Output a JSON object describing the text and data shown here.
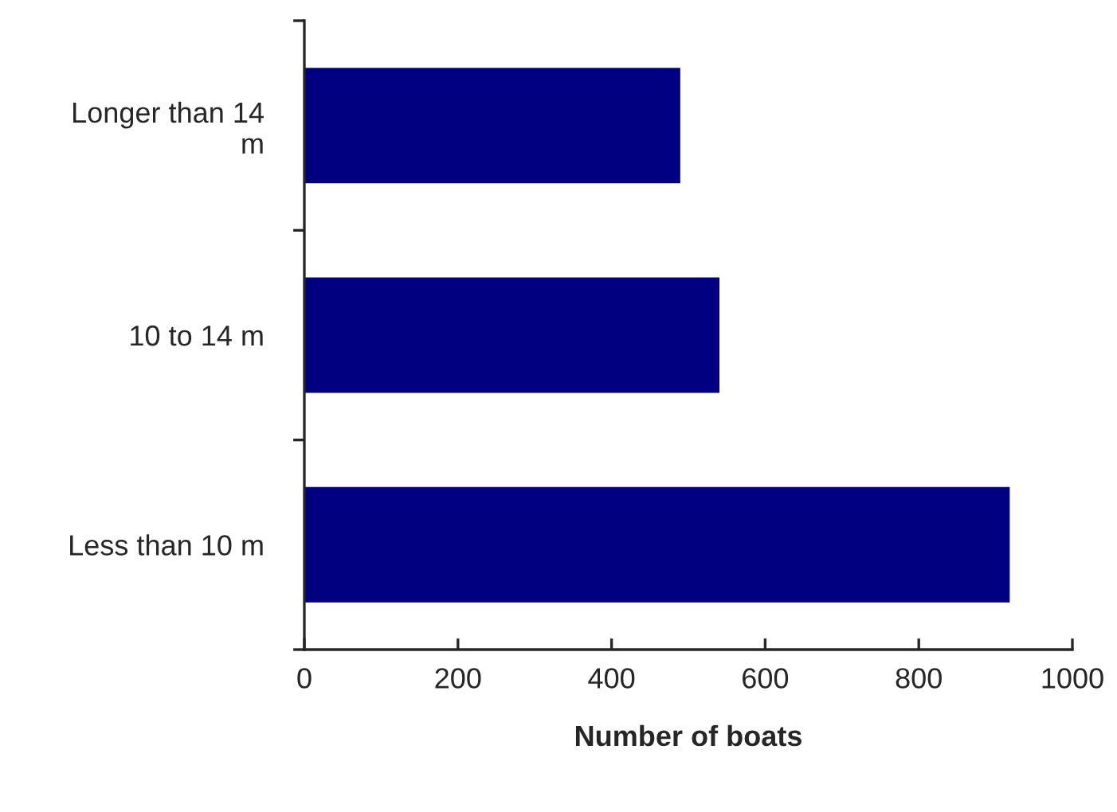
{
  "chart_data": {
    "type": "bar",
    "orientation": "horizontal",
    "xlabel": "Number of boats",
    "categories": [
      "Longer than 14 m",
      "10 to 14 m",
      "Less than 10 m"
    ],
    "values": [
      488,
      539,
      917
    ],
    "color": "#000080",
    "xlim": [
      0,
      1000
    ],
    "xticks": [
      0,
      200,
      400,
      600,
      800,
      1000
    ],
    "grid": false,
    "legend": false
  }
}
